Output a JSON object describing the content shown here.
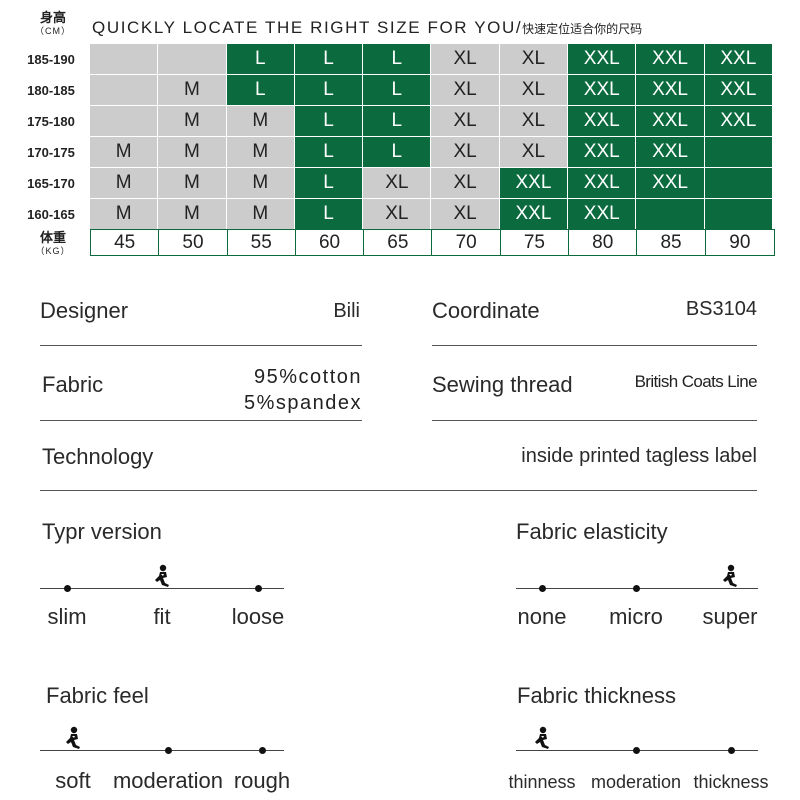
{
  "size_chart": {
    "title_en": "QUICKLY LOCATE THE RIGHT SIZE FOR YOU/",
    "title_zh": "快速定位适合你的尺码",
    "height_label_zh": "身高",
    "height_unit": "（CM）",
    "weight_label_zh": "体重",
    "weight_unit": "（KG）",
    "heights": [
      "185-190",
      "180-185",
      "175-180",
      "170-175",
      "165-170",
      "160-165"
    ],
    "weights": [
      "45",
      "50",
      "55",
      "60",
      "65",
      "70",
      "75",
      "80",
      "85",
      "90"
    ],
    "rows": [
      [
        "",
        "",
        "L",
        "L",
        "L",
        "XL",
        "XL",
        "XXL",
        "XXL",
        "XXL"
      ],
      [
        "",
        "M",
        "L",
        "L",
        "L",
        "XL",
        "XL",
        "XXL",
        "XXL",
        "XXL"
      ],
      [
        "",
        "M",
        "M",
        "L",
        "L",
        "XL",
        "XL",
        "XXL",
        "XXL",
        "XXL"
      ],
      [
        "M",
        "M",
        "M",
        "L",
        "L",
        "XL",
        "XL",
        "XXL",
        "XXL",
        ""
      ],
      [
        "M",
        "M",
        "M",
        "L",
        "XL",
        "XL",
        "XXL",
        "XXL",
        "XXL",
        ""
      ],
      [
        "M",
        "M",
        "M",
        "L",
        "XL",
        "XL",
        "XXL",
        "XXL",
        "",
        ""
      ]
    ],
    "row_colors": [
      "ggdddggddd",
      "ggdddggddd",
      "gggddggddd",
      "gggddggddd",
      "gggdggdddd",
      "gggdggdddd"
    ],
    "colors": {
      "green": "#0b6b3f",
      "gray": "#cccccc"
    }
  },
  "specs": {
    "designer_label": "Designer",
    "designer_value": "Bili",
    "coordinate_label": "Coordinate",
    "coordinate_value": "BS3104",
    "fabric_label": "Fabric",
    "fabric_value_1": "95%cotton",
    "fabric_value_2": "5%spandex",
    "thread_label": "Sewing thread",
    "thread_value": "British Coats Line",
    "technology_label": "Technology",
    "technology_value": "inside printed tagless label"
  },
  "scales": {
    "type_version": {
      "title": "Typr version",
      "options": [
        "slim",
        "fit",
        "loose"
      ],
      "selected": "fit"
    },
    "fabric_elasticity": {
      "title": "Fabric elasticity",
      "options": [
        "none",
        "micro",
        "super"
      ],
      "selected": "super"
    },
    "fabric_feel": {
      "title": "Fabric feel",
      "options": [
        "soft",
        "moderation",
        "rough"
      ],
      "selected": "soft"
    },
    "fabric_thickness": {
      "title": "Fabric thickness",
      "options": [
        "thinness",
        "moderation",
        "thickness"
      ],
      "selected": "thinness"
    },
    "marker_icon": "person-figure-icon"
  }
}
